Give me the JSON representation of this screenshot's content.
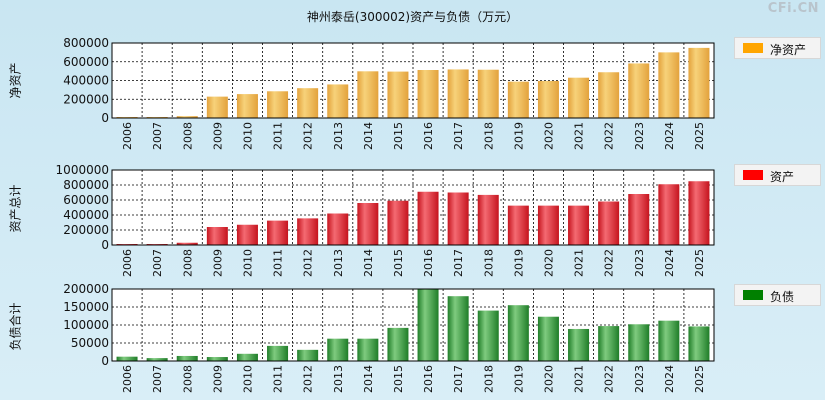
{
  "title": "神州泰岳(300002)资产与负债（万元）",
  "watermark": "CFi.CN",
  "chart_data": [
    {
      "type": "bar",
      "title": "神州泰岳(300002)资产与负债（万元）",
      "ylabel": "净资产",
      "legend": "净资产",
      "legend_color": "#ffa500",
      "bar_colors": [
        "#f7d27a",
        "#e3a23c"
      ],
      "ylim": [
        0,
        800000
      ],
      "yticks": [
        "0",
        "200000",
        "400000",
        "600000",
        "800000"
      ],
      "categories": [
        "2006",
        "2007",
        "2008",
        "2009",
        "2010",
        "2011",
        "2012",
        "2013",
        "2014",
        "2015",
        "2016",
        "2017",
        "2018",
        "2019",
        "2020",
        "2021",
        "2022",
        "2023",
        "2024",
        "2025"
      ],
      "values": [
        8000,
        9000,
        20000,
        228000,
        255000,
        285000,
        318000,
        358000,
        498000,
        495000,
        512000,
        518000,
        515000,
        388000,
        395000,
        430000,
        488000,
        582000,
        700000,
        748000
      ]
    },
    {
      "type": "bar",
      "ylabel": "资产总计",
      "legend": "资产",
      "legend_color": "#ff0000",
      "bar_colors": [
        "#f46a72",
        "#c5141e"
      ],
      "ylim": [
        0,
        1000000
      ],
      "yticks": [
        "0",
        "200000",
        "400000",
        "600000",
        "800000",
        "1000000"
      ],
      "categories": [
        "2006",
        "2007",
        "2008",
        "2009",
        "2010",
        "2011",
        "2012",
        "2013",
        "2014",
        "2015",
        "2016",
        "2017",
        "2018",
        "2019",
        "2020",
        "2021",
        "2022",
        "2023",
        "2024",
        "2025"
      ],
      "values": [
        10000,
        12000,
        30000,
        240000,
        270000,
        325000,
        355000,
        420000,
        560000,
        590000,
        710000,
        700000,
        668000,
        525000,
        525000,
        525000,
        580000,
        680000,
        810000,
        850000
      ]
    },
    {
      "type": "bar",
      "ylabel": "负债合计",
      "legend": "负债",
      "legend_color": "#008000",
      "bar_colors": [
        "#7fcb7f",
        "#1f7d28"
      ],
      "ylim": [
        0,
        200000
      ],
      "yticks": [
        "0",
        "50000",
        "100000",
        "150000",
        "200000"
      ],
      "categories": [
        "2006",
        "2007",
        "2008",
        "2009",
        "2010",
        "2011",
        "2012",
        "2013",
        "2014",
        "2015",
        "2016",
        "2017",
        "2018",
        "2019",
        "2020",
        "2021",
        "2022",
        "2023",
        "2024",
        "2025"
      ],
      "values": [
        12000,
        8000,
        14000,
        11000,
        20000,
        42000,
        31000,
        62000,
        62000,
        92000,
        200000,
        180000,
        140000,
        155000,
        123000,
        89000,
        97000,
        102000,
        112000,
        96000
      ]
    }
  ]
}
